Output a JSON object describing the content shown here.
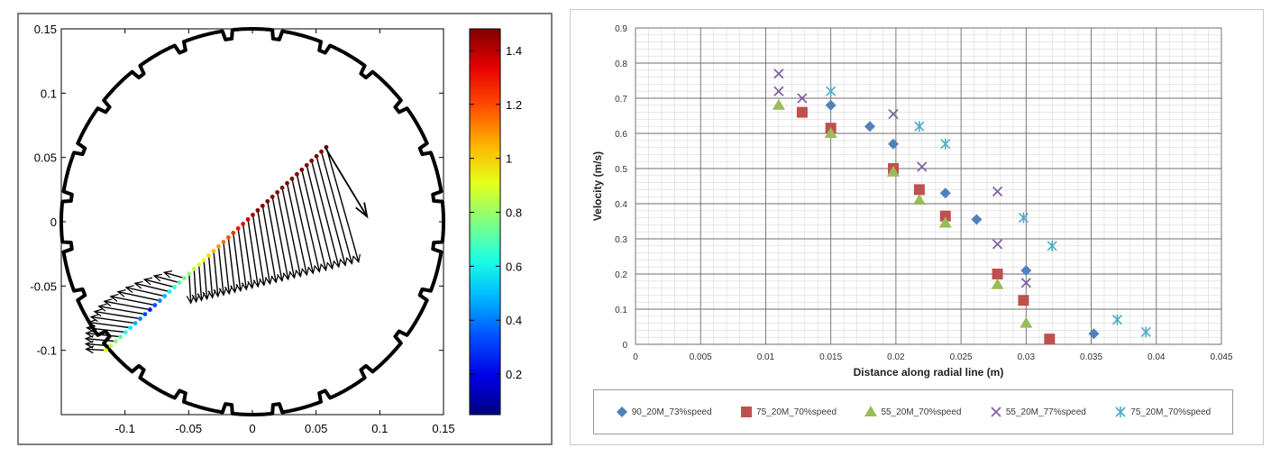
{
  "chart_data": [
    {
      "type": "vector",
      "title": "",
      "xlabel": "",
      "ylabel": "",
      "xlim": [
        -0.15,
        0.15
      ],
      "ylim": [
        -0.15,
        0.15
      ],
      "x_ticks": [
        -0.1,
        -0.05,
        0,
        0.05,
        0.1,
        0.15
      ],
      "y_ticks": [
        -0.1,
        -0.05,
        0,
        0.05,
        0.1,
        0.15
      ],
      "x_tick_labels": [
        "-0.1",
        "-0.05",
        "0",
        "0.05",
        "0.1",
        "0.15"
      ],
      "y_tick_labels": [
        "-0.1",
        "-0.05",
        "0",
        "0.05",
        "0.1",
        "0.15"
      ],
      "colorbar": {
        "min": 0.05,
        "max": 1.48,
        "ticks": [
          0.2,
          0.4,
          0.6,
          0.8,
          1,
          1.2,
          1.4
        ],
        "tick_labels": [
          "0.2",
          "0.4",
          "0.6",
          "0.8",
          "1",
          "1.2",
          "1.4"
        ]
      },
      "boundary": {
        "radius": 0.15,
        "notches": 24
      },
      "radial_line": {
        "start": [
          -0.115,
          -0.1
        ],
        "end": [
          0.058,
          0.058
        ]
      },
      "direction_arrow": {
        "start": [
          0.057,
          0.058
        ],
        "end": [
          0.09,
          0.004
        ]
      },
      "grid": false
    },
    {
      "type": "scatter",
      "title": "",
      "xlabel": "Distance along radial line (m)",
      "ylabel": "Velocity (m/s)",
      "xlim": [
        0,
        0.045
      ],
      "ylim": [
        0,
        0.9
      ],
      "x_ticks": [
        0,
        0.005,
        0.01,
        0.015,
        0.02,
        0.025,
        0.03,
        0.035,
        0.04,
        0.045
      ],
      "x_tick_labels": [
        "0",
        "0.005",
        "0.01",
        "0.015",
        "0.02",
        "0.025",
        "0.03",
        "0.035",
        "0.04",
        "0.045"
      ],
      "y_ticks": [
        0,
        0.1,
        0.2,
        0.3,
        0.4,
        0.5,
        0.6,
        0.7,
        0.8,
        0.9
      ],
      "y_tick_labels": [
        "0",
        "0.1",
        "0.2",
        "0.3",
        "0.4",
        "0.5",
        "0.6",
        "0.7",
        "0.8",
        "0.9"
      ],
      "grid": true,
      "legend_position": "bottom",
      "series": [
        {
          "name": "90_20M_73%speed",
          "marker": "diamond",
          "color": "#4f81bd",
          "points": [
            [
              0.015,
              0.68
            ],
            [
              0.018,
              0.62
            ],
            [
              0.0198,
              0.57
            ],
            [
              0.0238,
              0.43
            ],
            [
              0.0262,
              0.355
            ],
            [
              0.03,
              0.21
            ],
            [
              0.0352,
              0.03
            ]
          ]
        },
        {
          "name": "75_20M_70%speed",
          "marker": "square",
          "color": "#c0504d",
          "points": [
            [
              0.0128,
              0.66
            ],
            [
              0.015,
              0.615
            ],
            [
              0.0198,
              0.5
            ],
            [
              0.0218,
              0.44
            ],
            [
              0.0238,
              0.365
            ],
            [
              0.0278,
              0.2
            ],
            [
              0.0298,
              0.125
            ],
            [
              0.0318,
              0.015
            ]
          ]
        },
        {
          "name": "55_20M_70%speed",
          "marker": "triangle",
          "color": "#9bbb59",
          "points": [
            [
              0.011,
              0.68
            ],
            [
              0.015,
              0.6
            ],
            [
              0.0198,
              0.49
            ],
            [
              0.0218,
              0.41
            ],
            [
              0.0238,
              0.345
            ],
            [
              0.0278,
              0.17
            ],
            [
              0.03,
              0.06
            ]
          ]
        },
        {
          "name": "55_20M_77%speed",
          "marker": "x",
          "color": "#8064a2",
          "points": [
            [
              0.011,
              0.77
            ],
            [
              0.011,
              0.72
            ],
            [
              0.0128,
              0.7
            ],
            [
              0.0198,
              0.655
            ],
            [
              0.022,
              0.505
            ],
            [
              0.0278,
              0.435
            ],
            [
              0.0278,
              0.285
            ],
            [
              0.03,
              0.175
            ]
          ]
        },
        {
          "name": "75_20M_70%speed",
          "marker": "star",
          "color": "#4bacc6",
          "points": [
            [
              0.015,
              0.72
            ],
            [
              0.0218,
              0.62
            ],
            [
              0.0238,
              0.57
            ],
            [
              0.0298,
              0.36
            ],
            [
              0.032,
              0.28
            ],
            [
              0.037,
              0.07
            ],
            [
              0.0392,
              0.035
            ]
          ]
        }
      ]
    }
  ]
}
